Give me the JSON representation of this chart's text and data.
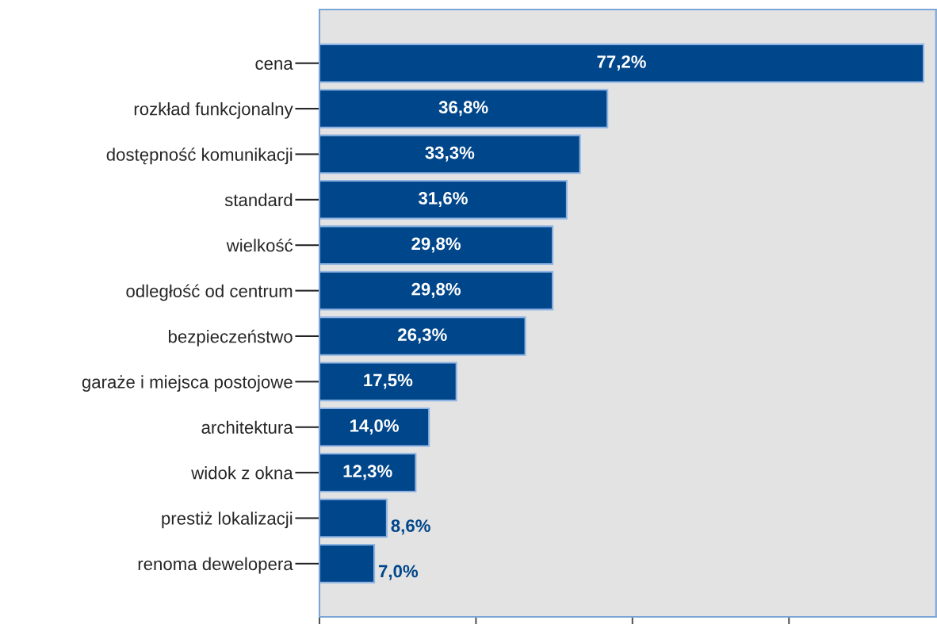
{
  "chart_data": {
    "type": "bar",
    "orientation": "horizontal",
    "categories": [
      "cena",
      "rozkład funkcjonalny",
      "dostępność komunikacji",
      "standard",
      "wielkość",
      "odległość od centrum",
      "bezpieczeństwo",
      "garaże i miejsca postojowe",
      "architektura",
      "widok z okna",
      "prestiż lokalizacji",
      "renoma dewelopera"
    ],
    "values": [
      77.2,
      36.8,
      33.3,
      31.6,
      29.8,
      29.8,
      26.3,
      17.5,
      14.0,
      12.3,
      8.6,
      7.0
    ],
    "value_labels": [
      "77,2%",
      "36,8%",
      "33,3%",
      "31,6%",
      "29,8%",
      "29,8%",
      "26,3%",
      "17,5%",
      "14,0%",
      "12,3%",
      "8,6%",
      "7,0%"
    ],
    "color": "#00468b",
    "xlim": [
      0,
      78.8
    ],
    "xticks": [
      {
        "value": 0,
        "label": null
      },
      {
        "value": 20,
        "label": null
      },
      {
        "value": 40,
        "label": null
      },
      {
        "value": 60,
        "label": null
      }
    ],
    "tick_labels": "y",
    "grid": false,
    "legend": false
  }
}
